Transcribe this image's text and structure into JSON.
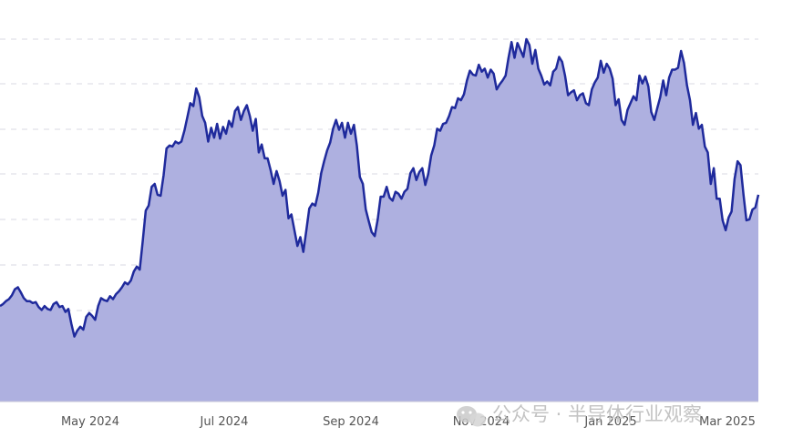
{
  "chart_data": {
    "type": "area",
    "title": "",
    "xlabel": "",
    "ylabel": "",
    "x_tick_labels": [
      "May 2024",
      "Jul 2024",
      "Sep 2024",
      "Nov 2024",
      "Jan 2025",
      "Mar 2025"
    ],
    "y_tick_labels_visible": false,
    "grid": true,
    "colors": {
      "line": "#1f2a9c",
      "fill": "#aeb0e0",
      "grid": "#d9d9e3",
      "tick_text": "#555555"
    },
    "series": [
      {
        "values": [
          97,
          99,
          102,
          104,
          108,
          114,
          116,
          111,
          105,
          102,
          102,
          100,
          101,
          96,
          93,
          97,
          94,
          93,
          99,
          101,
          96,
          97,
          91,
          94,
          79,
          66,
          72,
          76,
          73,
          86,
          90,
          87,
          83,
          97,
          105,
          103,
          102,
          107,
          104,
          109,
          112,
          116,
          121,
          119,
          123,
          132,
          137,
          134,
          163,
          194,
          199,
          218,
          221,
          210,
          209,
          230,
          257,
          260,
          259,
          264,
          262,
          264,
          275,
          289,
          303,
          300,
          318,
          309,
          290,
          283,
          264,
          278,
          268,
          282,
          267,
          279,
          272,
          285,
          279,
          295,
          299,
          286,
          295,
          301,
          290,
          275,
          287,
          253,
          261,
          247,
          247,
          235,
          221,
          234,
          224,
          209,
          215,
          186,
          190,
          174,
          158,
          167,
          152,
          174,
          196,
          201,
          199,
          212,
          232,
          244,
          255,
          263,
          277,
          286,
          276,
          283,
          268,
          283,
          272,
          281,
          260,
          228,
          221,
          195,
          183,
          172,
          168,
          185,
          208,
          208,
          218,
          207,
          204,
          213,
          211,
          206,
          213,
          216,
          232,
          237,
          225,
          233,
          237,
          220,
          231,
          250,
          260,
          277,
          275,
          282,
          283,
          290,
          299,
          298,
          308,
          306,
          312,
          326,
          336,
          332,
          331,
          342,
          335,
          338,
          329,
          337,
          333,
          317,
          322,
          326,
          331,
          349,
          365,
          349,
          364,
          357,
          350,
          368,
          362,
          343,
          357,
          338,
          331,
          322,
          325,
          321,
          335,
          338,
          350,
          345,
          331,
          311,
          314,
          316,
          306,
          311,
          313,
          303,
          301,
          317,
          324,
          329,
          346,
          334,
          343,
          338,
          328,
          301,
          307,
          286,
          281,
          296,
          303,
          310,
          306,
          331,
          323,
          330,
          320,
          294,
          286,
          298,
          309,
          326,
          311,
          329,
          337,
          337,
          339,
          356,
          344,
          321,
          306,
          281,
          293,
          277,
          281,
          259,
          253,
          221,
          237,
          206,
          206,
          184,
          174,
          187,
          193,
          226,
          244,
          240,
          210,
          184,
          185,
          195,
          197,
          210
        ]
      }
    ]
  },
  "watermark": {
    "text": "公众号 · 半导体行业观察",
    "icon": "wechat-icon"
  }
}
